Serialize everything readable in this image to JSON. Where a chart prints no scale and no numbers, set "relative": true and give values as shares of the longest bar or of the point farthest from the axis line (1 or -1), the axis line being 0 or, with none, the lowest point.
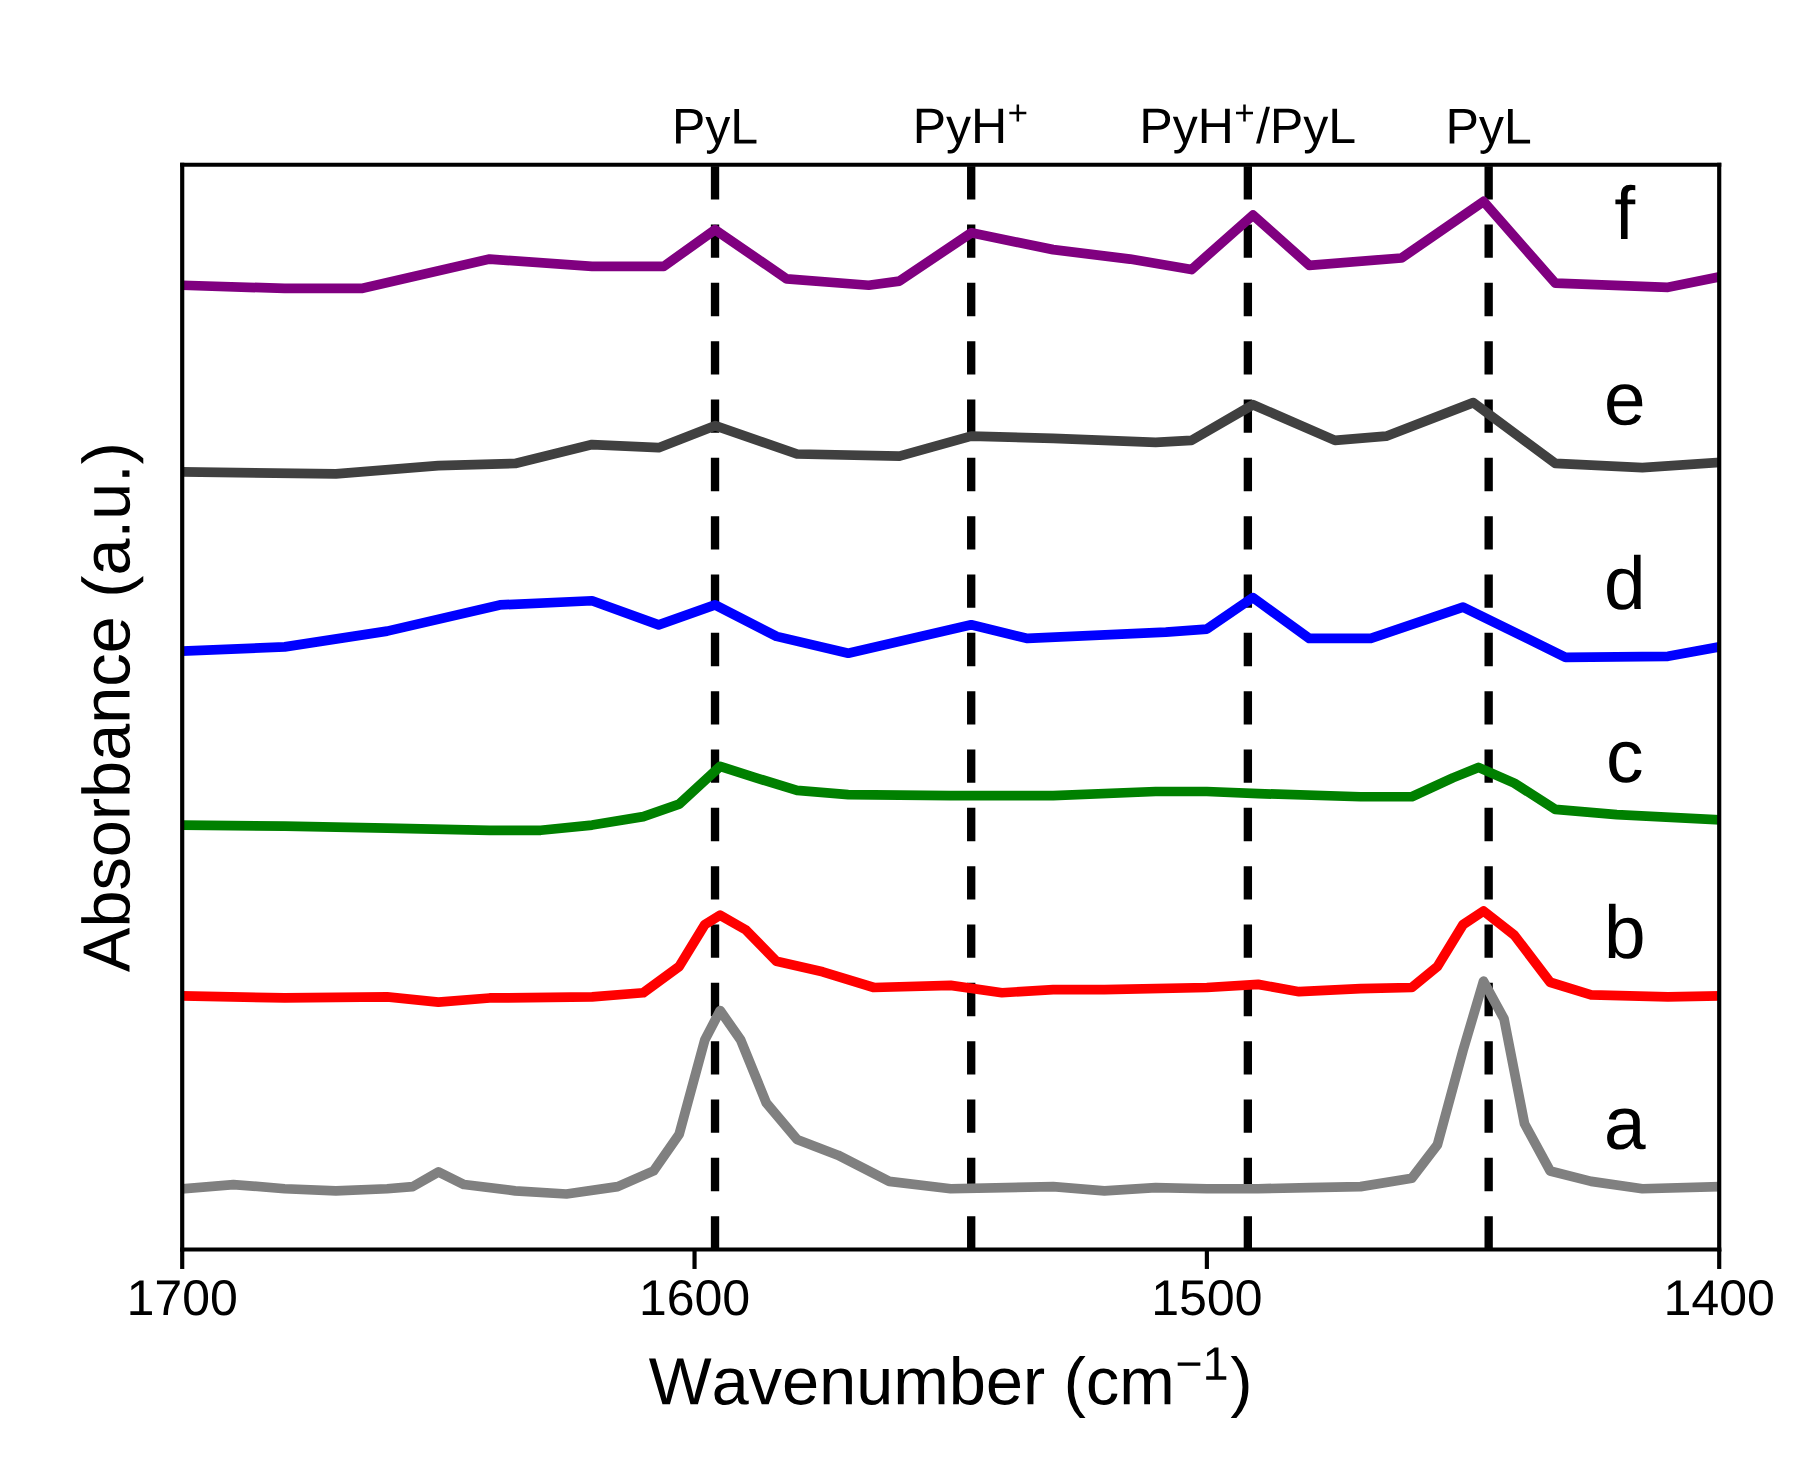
{
  "chart_data": {
    "type": "line",
    "xlabel": "Wavenumber (cm$^{−1}$)",
    "ylabel": "Absorbance (a.u.)",
    "relative": true,
    "tick_labels": "x",
    "grid": false,
    "legend": false,
    "line_style": "solid",
    "marker": "none",
    "xlim": [
      1700,
      1400
    ],
    "xticks": [
      1700,
      1600,
      1500,
      1400
    ],
    "ref_lines": [
      {
        "axis": "x",
        "value": 1596,
        "label": "PyL",
        "color": "#000000",
        "line_style": "dashed"
      },
      {
        "axis": "x",
        "value": 1546,
        "label": "PyH$^{+}$",
        "color": "#000000",
        "line_style": "dashed"
      },
      {
        "axis": "x",
        "value": 1492,
        "label": "PyH$^{+}$/PyL",
        "color": "#000000",
        "line_style": "dashed"
      },
      {
        "axis": "x",
        "value": 1445,
        "label": "PyL",
        "color": "#000000",
        "line_style": "dashed"
      }
    ],
    "series": [
      {
        "name": "a",
        "color": "#808080",
        "x": [
          1700,
          1690,
          1680,
          1670,
          1660,
          1655,
          1650,
          1645,
          1635,
          1625,
          1615,
          1608,
          1603,
          1598,
          1595,
          1591,
          1586,
          1580,
          1572,
          1562,
          1550,
          1530,
          1520,
          1510,
          1500,
          1490,
          1480,
          1470,
          1460,
          1455,
          1450,
          1446,
          1442,
          1438,
          1433,
          1425,
          1415,
          1400
        ],
        "values": [
          0.058,
          0.062,
          0.058,
          0.056,
          0.058,
          0.06,
          0.074,
          0.062,
          0.056,
          0.053,
          0.06,
          0.075,
          0.11,
          0.2,
          0.228,
          0.2,
          0.14,
          0.105,
          0.09,
          0.065,
          0.058,
          0.06,
          0.056,
          0.059,
          0.058,
          0.058,
          0.059,
          0.06,
          0.068,
          0.1,
          0.19,
          0.256,
          0.22,
          0.12,
          0.075,
          0.065,
          0.058,
          0.06
        ]
      },
      {
        "name": "b",
        "color": "#ff0000",
        "x": [
          1700,
          1680,
          1660,
          1650,
          1640,
          1620,
          1610,
          1603,
          1598,
          1595,
          1590,
          1584,
          1575,
          1565,
          1550,
          1540,
          1530,
          1520,
          1500,
          1490,
          1482,
          1470,
          1460,
          1455,
          1450,
          1446,
          1440,
          1433,
          1425,
          1410,
          1400
        ],
        "values": [
          0.242,
          0.24,
          0.241,
          0.236,
          0.24,
          0.241,
          0.245,
          0.27,
          0.31,
          0.319,
          0.305,
          0.275,
          0.265,
          0.25,
          0.252,
          0.245,
          0.248,
          0.248,
          0.25,
          0.253,
          0.246,
          0.249,
          0.25,
          0.27,
          0.31,
          0.323,
          0.3,
          0.255,
          0.243,
          0.241,
          0.242
        ]
      },
      {
        "name": "c",
        "color": "#008000",
        "x": [
          1700,
          1680,
          1660,
          1640,
          1630,
          1620,
          1610,
          1603,
          1595,
          1588,
          1580,
          1570,
          1550,
          1530,
          1510,
          1500,
          1490,
          1470,
          1460,
          1452,
          1447,
          1440,
          1432,
          1420,
          1400
        ],
        "values": [
          0.405,
          0.404,
          0.402,
          0.4,
          0.4,
          0.405,
          0.413,
          0.425,
          0.461,
          0.45,
          0.438,
          0.434,
          0.433,
          0.433,
          0.437,
          0.437,
          0.435,
          0.432,
          0.432,
          0.45,
          0.46,
          0.445,
          0.42,
          0.415,
          0.41
        ]
      },
      {
        "name": "d",
        "color": "#0000ff",
        "x": [
          1700,
          1680,
          1660,
          1638,
          1620,
          1607,
          1596,
          1584,
          1570,
          1546,
          1535,
          1508,
          1500,
          1491,
          1480,
          1468,
          1450,
          1430,
          1410,
          1400
        ],
        "values": [
          0.571,
          0.575,
          0.59,
          0.615,
          0.619,
          0.596,
          0.615,
          0.585,
          0.569,
          0.596,
          0.583,
          0.589,
          0.592,
          0.622,
          0.583,
          0.583,
          0.613,
          0.565,
          0.566,
          0.575
        ]
      },
      {
        "name": "e",
        "color": "#404040",
        "x": [
          1700,
          1670,
          1650,
          1635,
          1620,
          1607,
          1596,
          1580,
          1560,
          1546,
          1530,
          1510,
          1503,
          1491,
          1475,
          1465,
          1448,
          1432,
          1415,
          1400
        ],
        "values": [
          0.742,
          0.74,
          0.748,
          0.75,
          0.768,
          0.765,
          0.786,
          0.759,
          0.757,
          0.776,
          0.774,
          0.77,
          0.772,
          0.806,
          0.772,
          0.776,
          0.808,
          0.75,
          0.746,
          0.751
        ]
      },
      {
        "name": "f",
        "color": "#800080",
        "x": [
          1700,
          1680,
          1665,
          1640,
          1620,
          1606,
          1596,
          1582,
          1566,
          1560,
          1546,
          1530,
          1515,
          1503,
          1491,
          1480,
          1462,
          1446,
          1432,
          1410,
          1400
        ],
        "values": [
          0.92,
          0.917,
          0.917,
          0.945,
          0.938,
          0.938,
          0.973,
          0.926,
          0.92,
          0.924,
          0.97,
          0.954,
          0.945,
          0.935,
          0.987,
          0.939,
          0.946,
          1.0,
          0.922,
          0.918,
          0.928
        ]
      }
    ]
  }
}
